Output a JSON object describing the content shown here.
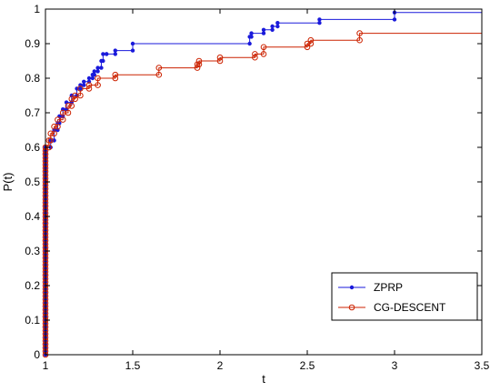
{
  "chart_data": {
    "type": "line",
    "step": true,
    "xlabel": "t",
    "ylabel": "P(t)",
    "xlim": [
      1,
      3.5
    ],
    "ylim": [
      0,
      1
    ],
    "xticks": [
      "1",
      "1.5",
      "2",
      "2.5",
      "3",
      "3.5"
    ],
    "yticks": [
      "0",
      "0.1",
      "0.2",
      "0.3",
      "0.4",
      "0.5",
      "0.6",
      "0.7",
      "0.8",
      "0.9",
      "1"
    ],
    "grid": false,
    "legend_position": "bottom-right",
    "series": [
      {
        "name": "ZPRP",
        "color": "#1a1adb",
        "marker": "dot",
        "x": [
          1.0,
          1.03,
          1.05,
          1.07,
          1.08,
          1.1,
          1.12,
          1.15,
          1.18,
          1.2,
          1.22,
          1.25,
          1.27,
          1.28,
          1.3,
          1.32,
          1.33,
          1.35,
          1.4,
          1.5,
          2.17,
          2.18,
          2.25,
          2.3,
          2.33,
          2.57,
          3.0
        ],
        "y": [
          0.6,
          0.62,
          0.65,
          0.67,
          0.69,
          0.71,
          0.73,
          0.75,
          0.77,
          0.78,
          0.79,
          0.8,
          0.81,
          0.82,
          0.83,
          0.85,
          0.87,
          0.87,
          0.88,
          0.9,
          0.92,
          0.93,
          0.94,
          0.95,
          0.96,
          0.97,
          0.99
        ],
        "x_end": 3.5
      },
      {
        "name": "CG-DESCENT",
        "color": "#cc2200",
        "marker": "circle",
        "x": [
          1.0,
          1.02,
          1.03,
          1.05,
          1.07,
          1.1,
          1.13,
          1.15,
          1.17,
          1.2,
          1.25,
          1.3,
          1.4,
          1.65,
          1.87,
          1.88,
          2.0,
          2.2,
          2.25,
          2.5,
          2.52,
          2.8
        ],
        "y": [
          0.6,
          0.62,
          0.64,
          0.66,
          0.68,
          0.7,
          0.72,
          0.74,
          0.75,
          0.77,
          0.78,
          0.8,
          0.81,
          0.83,
          0.84,
          0.85,
          0.86,
          0.87,
          0.89,
          0.9,
          0.91,
          0.93
        ],
        "x_end": 3.5
      }
    ],
    "initial_vertical_x": 1.0,
    "initial_vertical_to": 0.6
  }
}
